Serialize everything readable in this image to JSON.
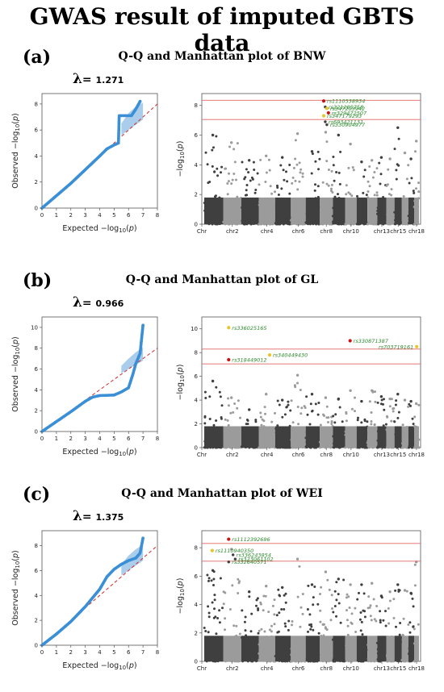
{
  "title": "GWAS result of imputed GBTS data",
  "colors": {
    "dark": "#3f3f3f",
    "light": "#9b9b9b",
    "qq_point": "#3a8fd6",
    "qq_band": "#a9cdea",
    "ref_line": "#d42a2a",
    "threshold": "#e06666",
    "snp_label": "#2e8b2e",
    "hit_red": "#cc1111",
    "hit_yellow": "#e8c52a"
  },
  "panels": [
    {
      "label": "(a)",
      "title": "Q-Q and Manhattan plot of BNW",
      "lambda": "1.271",
      "chart_data": [
        {
          "type": "scatter",
          "name": "qq",
          "xlabel": "Expected −log10(p)",
          "ylabel": "Observed −log10(p)",
          "xlim": [
            0,
            8
          ],
          "ylim": [
            0,
            8.8
          ],
          "xticks": [
            0,
            1,
            2,
            3,
            4,
            5,
            6,
            7,
            8
          ],
          "yticks": [
            0,
            2,
            4,
            6,
            8
          ],
          "curve": [
            [
              0,
              0
            ],
            [
              1,
              0.95
            ],
            [
              2,
              1.9
            ],
            [
              3,
              2.95
            ],
            [
              4,
              4.0
            ],
            [
              4.5,
              4.55
            ],
            [
              5,
              4.85
            ],
            [
              5.3,
              5.0
            ],
            [
              5.35,
              7.1
            ],
            [
              6.2,
              7.1
            ],
            [
              6.5,
              7.6
            ],
            [
              6.8,
              8.2
            ]
          ],
          "band": [
            [
              5.5,
              5.6,
              6.5
            ],
            [
              6,
              6.0,
              7.3
            ],
            [
              6.5,
              6.4,
              7.8
            ],
            [
              7,
              6.8,
              8.1
            ]
          ]
        },
        {
          "type": "scatter",
          "name": "manhattan",
          "ylabel": "−log10(p)",
          "ylim": [
            0,
            8.8
          ],
          "yticks": [
            0,
            2,
            4,
            6,
            8
          ],
          "chromosome_labels": [
            "Chr",
            "chr2",
            "chr4",
            "chr6",
            "chr8",
            "chr10",
            "chr13",
            "chr15",
            "chr18"
          ],
          "chromosome_peaks": [
            6.0,
            5.5,
            4.3,
            4.6,
            4.5,
            6.1,
            4.9,
            6.2,
            6.0,
            5.4,
            4.2,
            4.3,
            4.5,
            4.4,
            6.5,
            4.8,
            4.4,
            5.6
          ],
          "thresholds": [
            8.35,
            7.05
          ],
          "hits": [
            {
              "snp": "rs1110538934",
              "chr": 8,
              "y": 8.3,
              "color": "red"
            },
            {
              "snp": "rs321285758",
              "chr": 8,
              "y": 7.9,
              "color": "none"
            },
            {
              "snp": "rs347203942",
              "chr": 8,
              "y": 7.8,
              "color": "yellow"
            },
            {
              "snp": "rs329472507",
              "chr": 8,
              "y": 7.5,
              "color": "red"
            },
            {
              "snp": "rs347179293",
              "chr": 8,
              "y": 7.3,
              "color": "yellow"
            },
            {
              "snp": "rs693421131",
              "chr": 8,
              "y": 6.9,
              "color": "none"
            },
            {
              "snp": "rs330904977",
              "chr": 8,
              "y": 6.7,
              "color": "none"
            }
          ]
        }
      ]
    },
    {
      "label": "(b)",
      "title": "Q-Q and Manhattan plot of GL",
      "lambda": "0.966",
      "chart_data": [
        {
          "type": "scatter",
          "name": "qq",
          "xlabel": "Expected −log10(p)",
          "ylabel": "Observed −log10(p)",
          "xlim": [
            0,
            8
          ],
          "ylim": [
            0,
            11
          ],
          "xticks": [
            0,
            1,
            2,
            3,
            4,
            5,
            6,
            7,
            8
          ],
          "yticks": [
            0,
            2,
            4,
            6,
            8,
            10
          ],
          "curve": [
            [
              0,
              0
            ],
            [
              1,
              0.95
            ],
            [
              2,
              1.9
            ],
            [
              3,
              2.9
            ],
            [
              3.5,
              3.3
            ],
            [
              4,
              3.45
            ],
            [
              5,
              3.5
            ],
            [
              5.5,
              3.8
            ],
            [
              6,
              4.2
            ],
            [
              6.3,
              5.5
            ],
            [
              6.5,
              6.5
            ],
            [
              6.8,
              7.5
            ],
            [
              7,
              10.2
            ]
          ],
          "band": [
            [
              5.5,
              5.6,
              6.3
            ],
            [
              6,
              6.0,
              7.0
            ],
            [
              6.5,
              6.4,
              7.6
            ],
            [
              7,
              6.8,
              8.1
            ]
          ]
        },
        {
          "type": "scatter",
          "name": "manhattan",
          "ylabel": "−log10(p)",
          "ylim": [
            0,
            11
          ],
          "yticks": [
            0,
            2,
            4,
            6,
            8,
            10
          ],
          "chromosome_labels": [
            "Chr",
            "chr2",
            "chr4",
            "chr6",
            "chr8",
            "chr10",
            "chr13",
            "chr15",
            "chr18"
          ],
          "chromosome_peaks": [
            5.6,
            4.2,
            3.2,
            4.5,
            4.0,
            6.1,
            4.5,
            4.2,
            4.1,
            4.8,
            3.9,
            4.8,
            4.3,
            4.1,
            4.5,
            4.0,
            3.9,
            3.7
          ],
          "thresholds": [
            8.3,
            7.05
          ],
          "hits": [
            {
              "snp": "rs336025165",
              "chr": 2,
              "y": 10.1,
              "color": "yellow"
            },
            {
              "snp": "rs330871387",
              "chr": 10,
              "y": 9.0,
              "color": "red"
            },
            {
              "snp": "rs703719161",
              "chr": 18,
              "y": 8.5,
              "color": "yellow"
            },
            {
              "snp": "rs340449430",
              "chr": 4,
              "y": 7.8,
              "color": "yellow"
            },
            {
              "snp": "rs318449012",
              "chr": 2,
              "y": 7.4,
              "color": "red"
            }
          ]
        }
      ]
    },
    {
      "label": "(c)",
      "title": "Q-Q and Manhattan plot of WEI",
      "lambda": "1.375",
      "chart_data": [
        {
          "type": "scatter",
          "name": "qq",
          "xlabel": "Expected −log10(p)",
          "ylabel": "Observed −log10(p)",
          "xlim": [
            0,
            8
          ],
          "ylim": [
            0,
            9.2
          ],
          "xticks": [
            0,
            1,
            2,
            3,
            4,
            5,
            6,
            7,
            8
          ],
          "yticks": [
            0,
            2,
            4,
            6,
            8
          ],
          "curve": [
            [
              0,
              0
            ],
            [
              1,
              0.9
            ],
            [
              2,
              1.9
            ],
            [
              3,
              3.1
            ],
            [
              3.5,
              3.8
            ],
            [
              4,
              4.5
            ],
            [
              4.5,
              5.5
            ],
            [
              5,
              6.1
            ],
            [
              5.5,
              6.5
            ],
            [
              6,
              6.8
            ],
            [
              6.5,
              7.0
            ],
            [
              6.8,
              7.4
            ],
            [
              7,
              8.6
            ]
          ],
          "band": [
            [
              5.5,
              5.6,
              6.5
            ],
            [
              6,
              6.0,
              7.2
            ],
            [
              6.5,
              6.4,
              7.7
            ],
            [
              7,
              6.8,
              8.1
            ]
          ]
        },
        {
          "type": "scatter",
          "name": "manhattan",
          "ylabel": "−log10(p)",
          "ylim": [
            0,
            9.2
          ],
          "yticks": [
            0,
            2,
            4,
            6,
            8
          ],
          "chromosome_labels": [
            "Chr",
            "chr2",
            "chr4",
            "chr6",
            "chr8",
            "chr10",
            "chr13",
            "chr15",
            "chr18"
          ],
          "chromosome_peaks": [
            6.4,
            7.9,
            4.9,
            5.3,
            5.2,
            7.2,
            5.4,
            6.3,
            5.8,
            5.4,
            5.4,
            5.5,
            4.6,
            4.9,
            5.4,
            5.0,
            4.8,
            7.0
          ],
          "thresholds": [
            8.3,
            7.05
          ],
          "hits": [
            {
              "snp": "rs1112392696",
              "chr": 2,
              "y": 8.6,
              "color": "red"
            },
            {
              "snp": "rs1110940350",
              "chr": 1,
              "y": 7.8,
              "color": "yellow"
            },
            {
              "snp": "rs336243854",
              "chr": 2,
              "y": 7.5,
              "color": "none"
            },
            {
              "snp": "rs323061102",
              "chr": 2,
              "y": 7.2,
              "color": "none"
            },
            {
              "snp": "rs332640571",
              "chr": 2,
              "y": 7.0,
              "color": "none"
            }
          ]
        }
      ]
    }
  ]
}
